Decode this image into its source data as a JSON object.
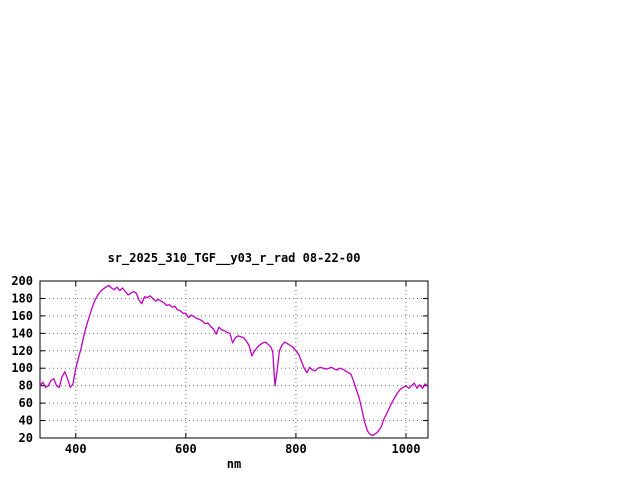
{
  "chart_data": {
    "type": "line",
    "title": "sr_2025_310_TGF__y03_r_rad 08-22-00",
    "xlabel": "nm",
    "ylabel": "",
    "xlim": [
      335,
      1040
    ],
    "ylim": [
      20,
      200
    ],
    "x_ticks": [
      400,
      600,
      800,
      1000
    ],
    "y_ticks": [
      20,
      40,
      60,
      80,
      100,
      120,
      140,
      160,
      180,
      200
    ],
    "grid": true,
    "legend_position": "none",
    "line_color": "#c000c0",
    "background_color": "#ffffff",
    "series": [
      {
        "name": "sr_2025_310_TGF__y03_r_rad",
        "x": [
          335,
          340,
          345,
          350,
          355,
          360,
          365,
          370,
          375,
          380,
          385,
          390,
          395,
          400,
          405,
          410,
          415,
          420,
          425,
          430,
          435,
          440,
          445,
          450,
          455,
          460,
          465,
          470,
          475,
          480,
          485,
          490,
          495,
          500,
          505,
          510,
          515,
          520,
          525,
          530,
          535,
          540,
          545,
          550,
          555,
          560,
          565,
          570,
          575,
          580,
          585,
          590,
          595,
          600,
          605,
          610,
          615,
          620,
          625,
          630,
          635,
          640,
          645,
          650,
          655,
          660,
          665,
          670,
          675,
          680,
          685,
          690,
          695,
          700,
          705,
          710,
          715,
          720,
          725,
          730,
          735,
          740,
          745,
          750,
          755,
          758,
          762,
          766,
          770,
          775,
          780,
          785,
          790,
          795,
          800,
          805,
          810,
          815,
          820,
          825,
          830,
          835,
          840,
          845,
          850,
          855,
          860,
          865,
          870,
          875,
          880,
          885,
          890,
          895,
          900,
          905,
          910,
          915,
          920,
          925,
          930,
          935,
          940,
          945,
          950,
          955,
          960,
          965,
          970,
          975,
          980,
          985,
          990,
          995,
          1000,
          1005,
          1010,
          1015,
          1020,
          1025,
          1030,
          1035,
          1040
        ],
        "y": [
          80,
          84,
          78,
          80,
          86,
          88,
          80,
          78,
          90,
          96,
          88,
          78,
          82,
          100,
          112,
          124,
          138,
          150,
          160,
          170,
          178,
          184,
          188,
          191,
          193,
          195,
          192,
          190,
          193,
          189,
          192,
          188,
          184,
          186,
          188,
          186,
          178,
          174,
          182,
          181,
          183,
          180,
          177,
          179,
          177,
          175,
          172,
          173,
          170,
          171,
          167,
          166,
          163,
          163,
          158,
          161,
          159,
          157,
          156,
          154,
          151,
          152,
          148,
          145,
          139,
          147,
          144,
          143,
          141,
          140,
          129,
          135,
          137,
          136,
          135,
          131,
          126,
          114,
          120,
          124,
          127,
          129,
          130,
          127,
          124,
          118,
          80,
          98,
          120,
          127,
          130,
          128,
          126,
          124,
          120,
          116,
          108,
          100,
          95,
          101,
          98,
          97,
          100,
          101,
          100,
          99,
          100,
          101,
          99,
          98,
          100,
          99,
          97,
          95,
          93,
          85,
          75,
          66,
          52,
          38,
          28,
          24,
          23,
          25,
          28,
          33,
          42,
          48,
          55,
          61,
          67,
          72,
          76,
          78,
          80,
          77,
          80,
          83,
          77,
          81,
          77,
          82,
          79
        ]
      }
    ]
  }
}
